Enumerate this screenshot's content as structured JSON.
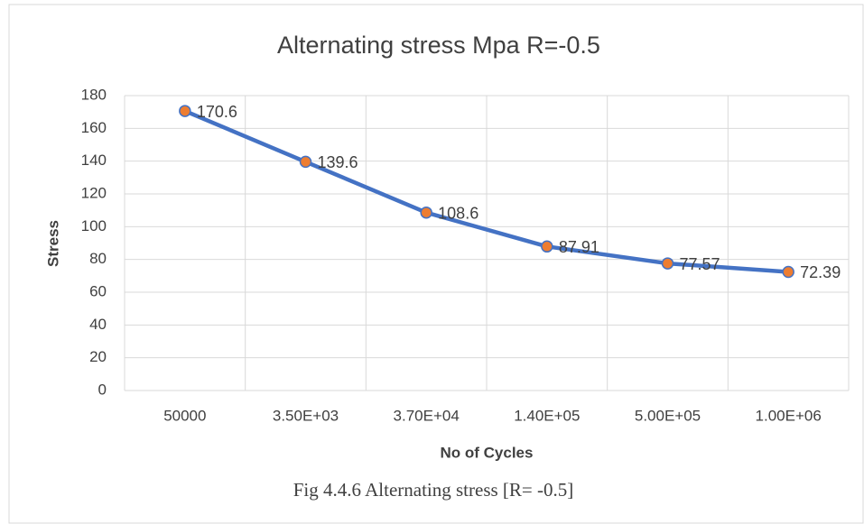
{
  "chart_data": {
    "type": "line",
    "title": "Alternating stress Mpa R=-0.5",
    "x_label": "No of Cycles",
    "y_label": "Stress",
    "categories": [
      "50000",
      "3.50E+03",
      "3.70E+04",
      "1.40E+05",
      "5.00E+05",
      "1.00E+06"
    ],
    "values": [
      170.6,
      139.6,
      108.6,
      87.91,
      77.57,
      72.39
    ],
    "color": "#4472c4",
    "marker_color": "#ed7d31",
    "ylim": [
      0,
      180
    ],
    "yticks": [
      0,
      20,
      40,
      60,
      80,
      100,
      120,
      140,
      160,
      180
    ],
    "grid": true,
    "data_labels": true
  },
  "caption": "Fig 4.4.6 Alternating stress [R= -0.5]"
}
